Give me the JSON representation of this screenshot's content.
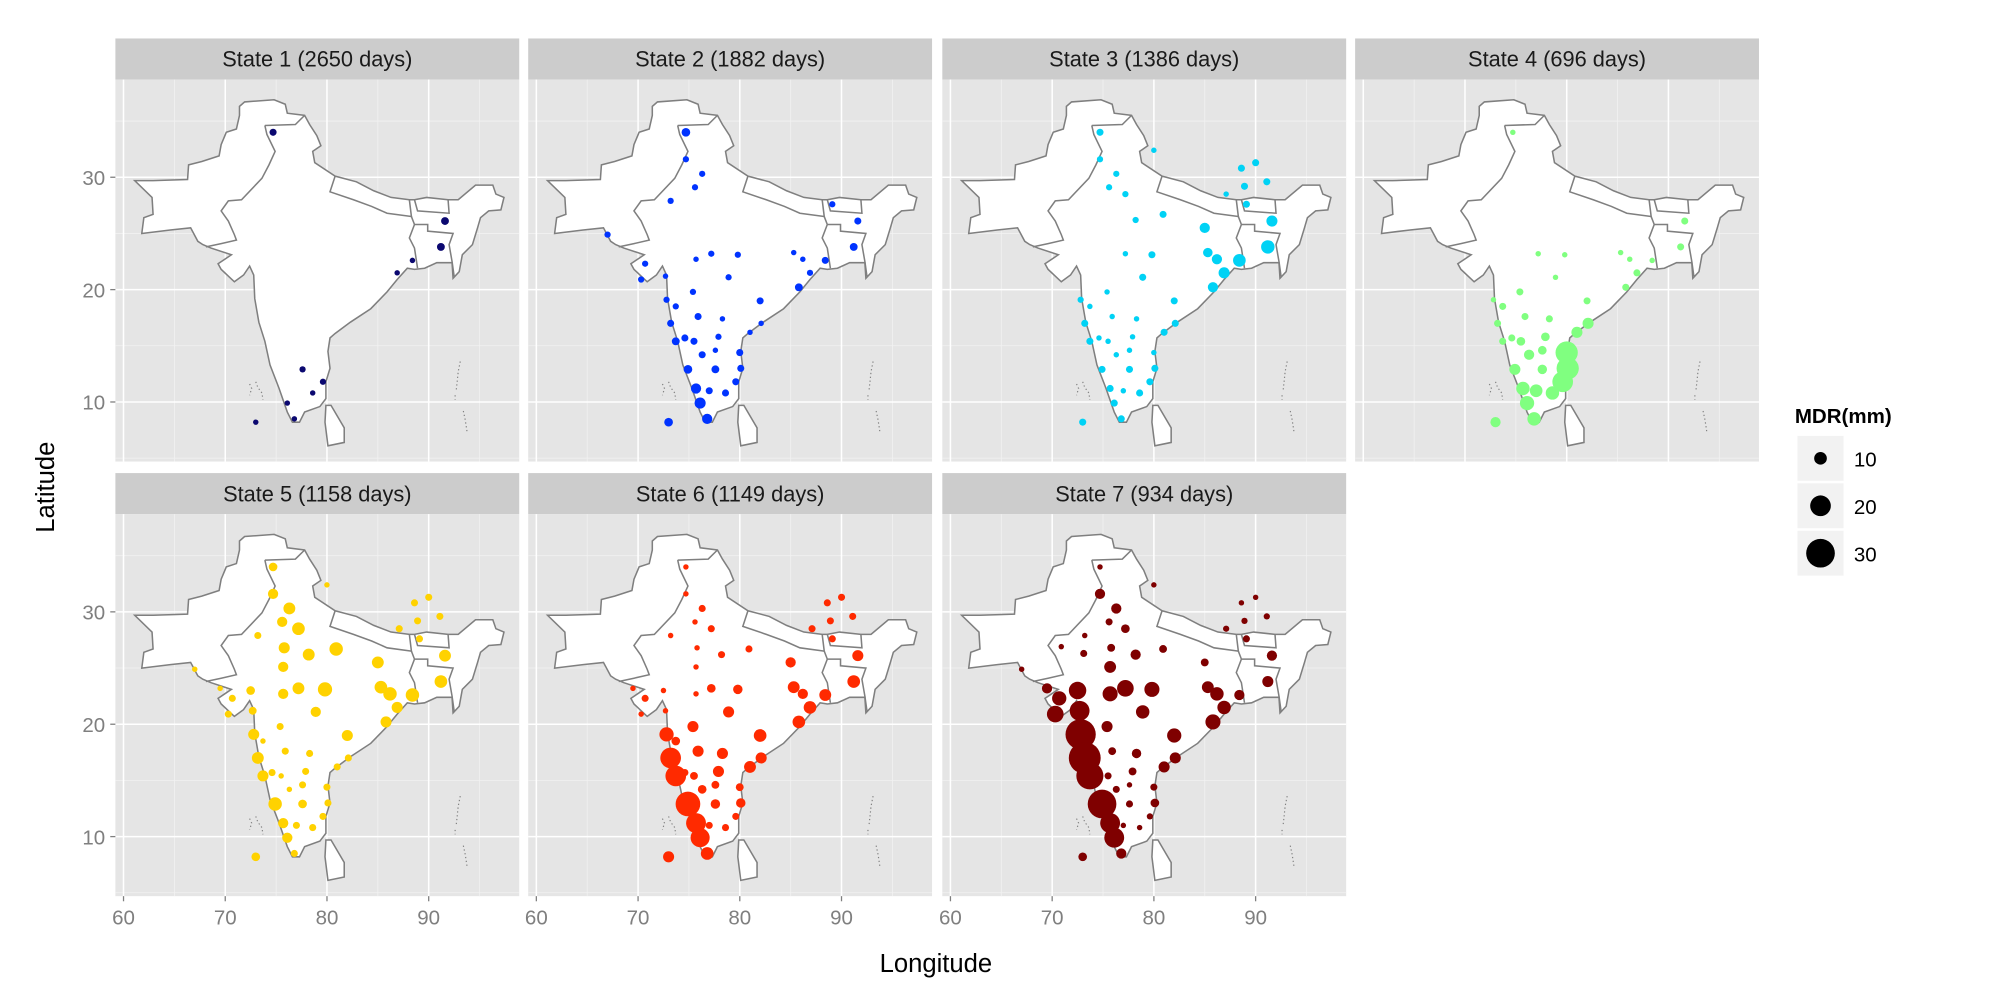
{
  "chart_data": {
    "type": "scatter",
    "subtype": "faceted bubble map",
    "xlabel": "Longitude",
    "ylabel": "Latitude",
    "xlim": [
      59.2,
      98.9
    ],
    "ylim": [
      4.7,
      38.7
    ],
    "x_ticks": [
      "60",
      "70",
      "80",
      "90"
    ],
    "x_tick_values": [
      60,
      70,
      80,
      90
    ],
    "y_ticks": [
      "10",
      "20",
      "30"
    ],
    "y_tick_values": [
      10,
      20,
      30
    ],
    "grid": true,
    "legend": {
      "title": "MDR(mm)",
      "placement": "right",
      "entries": [
        {
          "label": "10",
          "value": 10
        },
        {
          "label": "20",
          "value": 20
        },
        {
          "label": "30",
          "value": 30
        }
      ]
    },
    "stations": [
      [
        74.7,
        34.0
      ],
      [
        74.7,
        31.6
      ],
      [
        76.3,
        30.3
      ],
      [
        75.6,
        29.1
      ],
      [
        77.2,
        28.5
      ],
      [
        73.2,
        27.9
      ],
      [
        75.8,
        26.8
      ],
      [
        78.2,
        26.2
      ],
      [
        80.9,
        26.7
      ],
      [
        75.7,
        25.1
      ],
      [
        85.0,
        25.5
      ],
      [
        69.5,
        23.2
      ],
      [
        70.7,
        22.3
      ],
      [
        72.5,
        23.0
      ],
      [
        75.7,
        22.7
      ],
      [
        77.2,
        23.2
      ],
      [
        79.8,
        23.1
      ],
      [
        85.3,
        23.3
      ],
      [
        86.2,
        22.7
      ],
      [
        88.4,
        22.6
      ],
      [
        91.2,
        23.8
      ],
      [
        91.6,
        26.1
      ],
      [
        88.6,
        30.8
      ],
      [
        90.0,
        31.3
      ],
      [
        91.1,
        29.6
      ],
      [
        88.9,
        29.2
      ],
      [
        87.1,
        28.5
      ],
      [
        89.1,
        27.6
      ],
      [
        70.3,
        20.9
      ],
      [
        72.7,
        21.2
      ],
      [
        78.9,
        21.1
      ],
      [
        86.9,
        21.5
      ],
      [
        85.8,
        20.2
      ],
      [
        75.4,
        19.8
      ],
      [
        72.8,
        19.1
      ],
      [
        73.7,
        18.5
      ],
      [
        82.0,
        19.0
      ],
      [
        75.9,
        17.6
      ],
      [
        78.3,
        17.4
      ],
      [
        73.2,
        17.0
      ],
      [
        82.1,
        17.0
      ],
      [
        81.0,
        16.2
      ],
      [
        73.7,
        15.4
      ],
      [
        75.5,
        15.4
      ],
      [
        77.9,
        15.8
      ],
      [
        76.3,
        14.2
      ],
      [
        77.6,
        14.6
      ],
      [
        80.0,
        14.4
      ],
      [
        74.9,
        12.9
      ],
      [
        77.6,
        12.9
      ],
      [
        80.1,
        13.0
      ],
      [
        79.6,
        11.8
      ],
      [
        75.7,
        11.2
      ],
      [
        77.0,
        11.0
      ],
      [
        78.6,
        10.8
      ],
      [
        76.1,
        9.9
      ],
      [
        76.8,
        8.5
      ],
      [
        73.0,
        8.2
      ],
      [
        67.0,
        24.9
      ],
      [
        80.0,
        32.4
      ],
      [
        74.6,
        15.7
      ],
      [
        70.9,
        26.9
      ],
      [
        73.1,
        26.3
      ]
    ],
    "series": [
      {
        "name": "State 1 (2650 days)",
        "color": "#0b0870",
        "values": [
          3,
          null,
          null,
          null,
          null,
          null,
          null,
          null,
          null,
          null,
          null,
          null,
          null,
          null,
          null,
          null,
          null,
          null,
          null,
          1,
          4,
          4,
          null,
          null,
          null,
          null,
          null,
          null,
          null,
          null,
          null,
          1,
          null,
          null,
          null,
          null,
          null,
          null,
          null,
          null,
          null,
          null,
          null,
          null,
          null,
          null,
          null,
          null,
          null,
          2,
          null,
          2,
          null,
          null,
          1,
          1,
          1,
          1,
          null,
          null,
          null,
          null,
          null
        ]
      },
      {
        "name": "State 2 (1882 days)",
        "color": "#0033ff",
        "values": [
          5,
          2,
          2,
          2,
          null,
          2,
          null,
          null,
          null,
          null,
          null,
          null,
          2,
          null,
          1,
          2,
          2,
          1,
          1,
          3,
          4,
          3,
          null,
          null,
          null,
          null,
          null,
          2,
          2,
          1,
          2,
          2,
          4,
          2,
          2,
          2,
          3,
          3,
          1,
          3,
          1,
          1,
          4,
          3,
          2,
          3,
          1,
          3,
          5,
          4,
          3,
          3,
          7,
          3,
          3,
          8,
          7,
          5,
          2,
          null,
          3,
          null,
          null
        ]
      },
      {
        "name": "State 3 (1386 days)",
        "color": "#00d2f5",
        "values": [
          3,
          2,
          2,
          2,
          2,
          null,
          null,
          2,
          3,
          null,
          7,
          null,
          null,
          null,
          null,
          1,
          3,
          6,
          7,
          10,
          11,
          8,
          3,
          3,
          3,
          3,
          1,
          3,
          null,
          null,
          3,
          8,
          7,
          1,
          2,
          1,
          3,
          1,
          1,
          3,
          3,
          3,
          3,
          1,
          1,
          1,
          1,
          1,
          3,
          3,
          3,
          3,
          3,
          1,
          3,
          3,
          3,
          3,
          null,
          1,
          1,
          null,
          null
        ]
      },
      {
        "name": "State 4 (696 days)",
        "color": "#80ff80",
        "values": [
          1,
          null,
          null,
          null,
          null,
          null,
          null,
          null,
          null,
          null,
          null,
          null,
          null,
          null,
          null,
          1,
          1,
          1,
          1,
          1,
          3,
          3,
          null,
          null,
          null,
          null,
          null,
          null,
          null,
          null,
          1,
          3,
          3,
          3,
          1,
          3,
          3,
          3,
          3,
          3,
          8,
          8,
          3,
          5,
          5,
          7,
          5,
          22,
          8,
          6,
          22,
          20,
          11,
          10,
          11,
          12,
          11,
          7,
          null,
          null,
          3,
          null,
          null
        ]
      },
      {
        "name": "State 5 (1158 days)",
        "color": "#ffd200",
        "values": [
          5,
          7,
          9,
          7,
          10,
          3,
          8,
          9,
          11,
          7,
          9,
          1,
          3,
          5,
          7,
          9,
          12,
          10,
          11,
          11,
          10,
          9,
          3,
          3,
          3,
          3,
          3,
          3,
          3,
          4,
          7,
          8,
          8,
          3,
          8,
          1,
          8,
          3,
          3,
          9,
          3,
          3,
          8,
          1,
          3,
          1,
          3,
          3,
          11,
          5,
          3,
          3,
          7,
          3,
          3,
          7,
          3,
          5,
          1,
          1,
          3,
          null,
          null
        ]
      },
      {
        "name": "State 6 (1149 days)",
        "color": "#ff2a00",
        "values": [
          1,
          1,
          3,
          1,
          3,
          1,
          1,
          3,
          3,
          1,
          7,
          1,
          3,
          1,
          1,
          5,
          6,
          9,
          7,
          9,
          10,
          8,
          3,
          3,
          3,
          3,
          3,
          3,
          1,
          1,
          8,
          10,
          10,
          8,
          12,
          5,
          10,
          8,
          8,
          20,
          8,
          9,
          20,
          4,
          8,
          5,
          4,
          4,
          25,
          6,
          6,
          3,
          19,
          3,
          3,
          18,
          10,
          8,
          null,
          null,
          3,
          null,
          null
        ]
      },
      {
        "name": "State 7 (934 days)",
        "color": "#7f0000",
        "values": [
          1,
          7,
          7,
          3,
          5,
          1,
          4,
          7,
          4,
          9,
          4,
          7,
          12,
          16,
          13,
          15,
          13,
          9,
          11,
          7,
          8,
          7,
          1,
          1,
          2,
          2,
          2,
          3,
          15,
          19,
          11,
          11,
          13,
          8,
          32,
          null,
          12,
          4,
          6,
          34,
          8,
          8,
          28,
          3,
          4,
          3,
          1,
          3,
          30,
          3,
          5,
          2,
          19,
          1,
          1,
          19,
          7,
          5,
          1,
          1,
          null,
          1,
          3
        ]
      }
    ],
    "colors": {
      "panel_bg": "#e5e5e5",
      "strip_bg": "#cccccc",
      "land": "#ffffff",
      "border": "#7f7f7f",
      "legend_key_bg": "#f2f2f2"
    }
  }
}
